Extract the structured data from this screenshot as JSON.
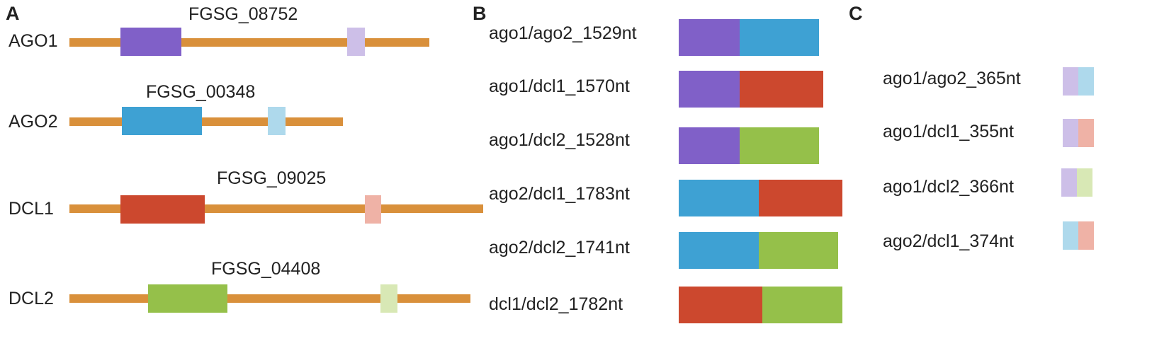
{
  "panels": {
    "a": "A",
    "b": "B",
    "c": "C"
  },
  "colors": {
    "line": "#D9903B",
    "ago1": "#8060C8",
    "ago2": "#3EA1D3",
    "dcl1": "#CC482E",
    "dcl2": "#95C04A",
    "ago1_light": "#CDBFE8",
    "ago2_light": "#AED9EC",
    "dcl1_light": "#EFB2A6",
    "dcl2_light": "#D8E8B5"
  },
  "genes": [
    {
      "name": "AGO1",
      "id": "FGSG_08752"
    },
    {
      "name": "AGO2",
      "id": "FGSG_00348"
    },
    {
      "name": "DCL1",
      "id": "FGSG_09025"
    },
    {
      "name": "DCL2",
      "id": "FGSG_04408"
    }
  ],
  "constructs": [
    {
      "label": "ago1/ago2_1529nt"
    },
    {
      "label": "ago1/dcl1_1570nt"
    },
    {
      "label": "ago1/dcl2_1528nt"
    },
    {
      "label": "ago2/dcl1_1783nt"
    },
    {
      "label": "ago2/dcl2_1741nt"
    },
    {
      "label": "dcl1/dcl2_1782nt"
    }
  ],
  "hairpins": [
    {
      "label": "ago1/ago2_365nt"
    },
    {
      "label": "ago1/dcl1_355nt"
    },
    {
      "label": "ago1/dcl2_366nt"
    },
    {
      "label": "ago2/dcl1_374nt"
    }
  ]
}
